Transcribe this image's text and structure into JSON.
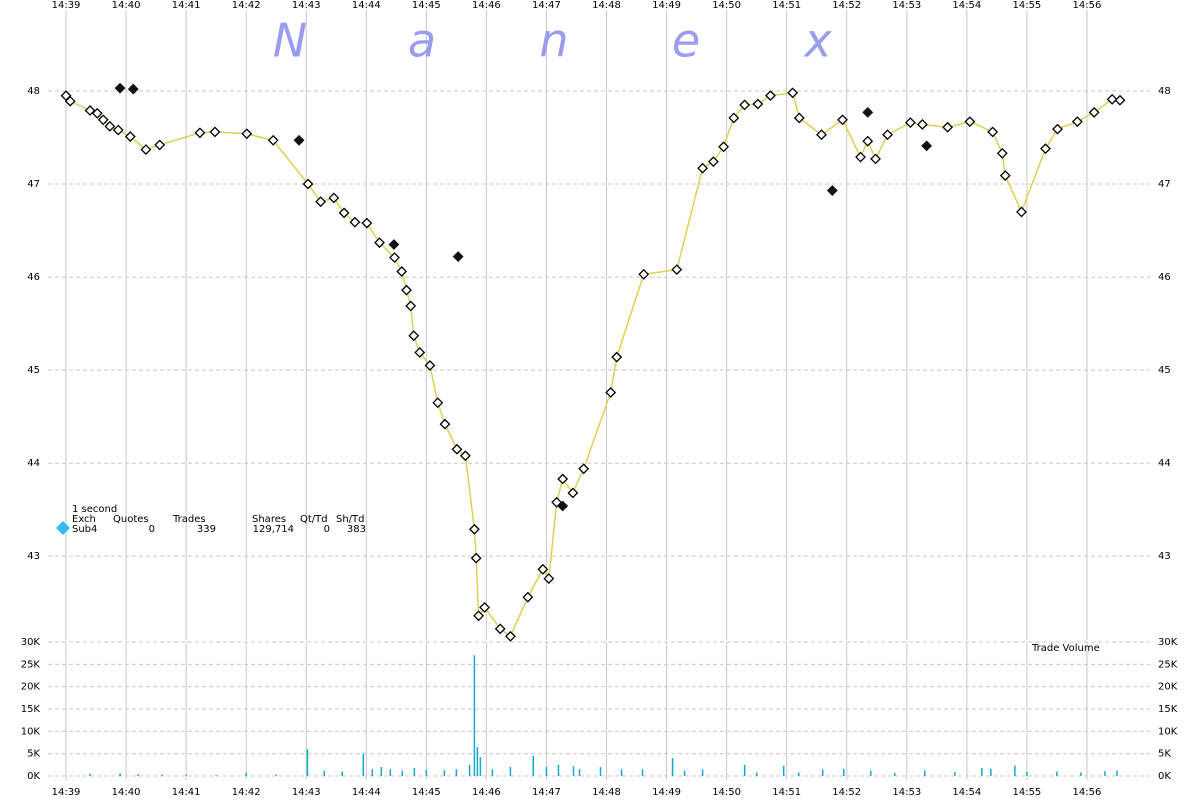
{
  "chart_data": [
    {
      "type": "scatter",
      "watermark": [
        "N",
        "a",
        "n",
        "e",
        "x"
      ],
      "info_table": {
        "interval": "1 second",
        "headers": [
          "Exch",
          "Quotes",
          "Trades",
          "Shares",
          "Qt/Td",
          "Sh/Td"
        ],
        "row": [
          "Sub4",
          "0",
          "339",
          "129,714",
          "0",
          "383"
        ],
        "marker_color": "#33bbee"
      },
      "xlim": [
        38.7,
        57.05
      ],
      "xticks": [
        {
          "value": 39,
          "label": "14:39"
        },
        {
          "value": 40,
          "label": "14:40"
        },
        {
          "value": 41,
          "label": "14:41"
        },
        {
          "value": 42,
          "label": "14:42"
        },
        {
          "value": 43,
          "label": "14:43"
        },
        {
          "value": 44,
          "label": "14:44"
        },
        {
          "value": 45,
          "label": "14:45"
        },
        {
          "value": 46,
          "label": "14:46"
        },
        {
          "value": 47,
          "label": "14:47"
        },
        {
          "value": 48,
          "label": "14:48"
        },
        {
          "value": 49,
          "label": "14:49"
        },
        {
          "value": 50,
          "label": "14:50"
        },
        {
          "value": 51,
          "label": "14:51"
        },
        {
          "value": 52,
          "label": "14:52"
        },
        {
          "value": 53,
          "label": "14:53"
        },
        {
          "value": 54,
          "label": "14:54"
        },
        {
          "value": 55,
          "label": "14:55"
        },
        {
          "value": 56,
          "label": "14:56"
        }
      ],
      "ylim": [
        42.1,
        48.87
      ],
      "yticks": [
        43,
        44,
        45,
        46,
        47,
        48
      ],
      "grid": true,
      "series": [
        {
          "color": "#000000",
          "marker": "diamond-open",
          "line_color": "#e0d050",
          "x": [
            39.0,
            39.07,
            39.4,
            39.52,
            39.62,
            39.73,
            39.87,
            40.07,
            40.33,
            40.56,
            41.23,
            41.48,
            42.01,
            42.45,
            43.03,
            43.24,
            43.46,
            43.63,
            43.81,
            44.01,
            44.22,
            44.47,
            44.59,
            44.67,
            44.74,
            44.79,
            44.89,
            45.06,
            45.19,
            45.31,
            45.51,
            45.65,
            45.8,
            45.83,
            45.87,
            45.97,
            46.23,
            46.4,
            46.69,
            46.94,
            47.04,
            47.17,
            47.27,
            47.44,
            47.62,
            48.07,
            48.17,
            48.62,
            49.17,
            49.6,
            49.78,
            49.95,
            50.12,
            50.3,
            50.52,
            50.73,
            51.1,
            51.21,
            51.58,
            51.93,
            52.23,
            52.35,
            52.48,
            52.68,
            53.06,
            53.26,
            53.68,
            54.05,
            54.43,
            54.59,
            54.64,
            54.91,
            55.31,
            55.51,
            55.84,
            56.12,
            56.42,
            56.55
          ],
          "values": [
            47.95,
            47.89,
            47.79,
            47.76,
            47.69,
            47.62,
            47.58,
            47.51,
            47.37,
            47.42,
            47.55,
            47.56,
            47.54,
            47.47,
            47.0,
            46.81,
            46.85,
            46.69,
            46.59,
            46.58,
            46.37,
            46.21,
            46.06,
            45.86,
            45.69,
            45.37,
            45.19,
            45.05,
            44.65,
            44.42,
            44.15,
            44.08,
            43.29,
            42.98,
            42.36,
            42.45,
            42.22,
            42.14,
            42.56,
            42.86,
            42.76,
            43.58,
            43.83,
            43.68,
            43.94,
            44.76,
            45.14,
            46.03,
            46.08,
            47.17,
            47.24,
            47.4,
            47.71,
            47.85,
            47.86,
            47.95,
            47.98,
            47.71,
            47.53,
            47.69,
            47.29,
            47.46,
            47.27,
            47.53,
            47.66,
            47.64,
            47.61,
            47.67,
            47.56,
            47.33,
            47.09,
            46.7,
            47.38,
            47.59,
            47.67,
            47.77,
            47.91,
            47.9
          ]
        },
        {
          "color": "#111111",
          "marker": "diamond-filled",
          "x": [
            39.9,
            40.12,
            42.88,
            44.46,
            45.53,
            47.27,
            51.76,
            52.35,
            53.33
          ],
          "values": [
            48.03,
            48.02,
            47.47,
            46.35,
            46.22,
            43.54,
            46.93,
            47.77,
            47.41
          ]
        }
      ]
    },
    {
      "type": "bar",
      "title": "Trade Volume",
      "color": "#11aacc",
      "xlim": [
        38.7,
        57.05
      ],
      "xticks": [
        {
          "value": 39,
          "label": "14:39"
        },
        {
          "value": 40,
          "label": "14:40"
        },
        {
          "value": 41,
          "label": "14:41"
        },
        {
          "value": 42,
          "label": "14:42"
        },
        {
          "value": 43,
          "label": "14:43"
        },
        {
          "value": 44,
          "label": "14:44"
        },
        {
          "value": 45,
          "label": "14:45"
        },
        {
          "value": 46,
          "label": "14:46"
        },
        {
          "value": 47,
          "label": "14:47"
        },
        {
          "value": 48,
          "label": "14:48"
        },
        {
          "value": 49,
          "label": "14:49"
        },
        {
          "value": 50,
          "label": "14:50"
        },
        {
          "value": 51,
          "label": "14:51"
        },
        {
          "value": 52,
          "label": "14:52"
        },
        {
          "value": 53,
          "label": "14:53"
        },
        {
          "value": 54,
          "label": "14:54"
        },
        {
          "value": 55,
          "label": "14:55"
        },
        {
          "value": 56,
          "label": "14:56"
        }
      ],
      "ylim": [
        0,
        30000
      ],
      "yticks": [
        {
          "value": 0,
          "label": "0K"
        },
        {
          "value": 5000,
          "label": "5K"
        },
        {
          "value": 10000,
          "label": "10K"
        },
        {
          "value": 15000,
          "label": "15K"
        },
        {
          "value": 20000,
          "label": "20K"
        },
        {
          "value": 25000,
          "label": "25K"
        },
        {
          "value": 30000,
          "label": "30K"
        }
      ],
      "grid": true,
      "x": [
        39.4,
        39.9,
        40.2,
        40.6,
        41.0,
        41.5,
        42.0,
        42.5,
        43.02,
        43.3,
        43.6,
        43.95,
        44.1,
        44.25,
        44.4,
        44.6,
        44.8,
        45.0,
        45.3,
        45.5,
        45.72,
        45.8,
        45.85,
        45.9,
        46.1,
        46.4,
        46.78,
        47.0,
        47.2,
        47.45,
        47.55,
        47.9,
        48.25,
        48.6,
        49.1,
        49.3,
        49.6,
        50.3,
        50.5,
        50.95,
        51.2,
        51.6,
        51.95,
        52.4,
        52.8,
        53.3,
        53.8,
        54.25,
        54.4,
        54.8,
        55.0,
        55.5,
        55.9,
        56.3,
        56.5
      ],
      "values": [
        500,
        600,
        400,
        300,
        300,
        200,
        700,
        300,
        6000,
        1200,
        1000,
        5000,
        1500,
        2000,
        1500,
        1200,
        1800,
        1400,
        1300,
        1500,
        2500,
        27000,
        6500,
        4200,
        1500,
        2000,
        4500,
        2000,
        2500,
        2200,
        1500,
        2000,
        1500,
        1500,
        4000,
        1200,
        1500,
        2500,
        800,
        2300,
        800,
        1500,
        1600,
        1200,
        700,
        1300,
        900,
        1800,
        1600,
        2300,
        900,
        1000,
        800,
        1100,
        1200
      ]
    }
  ]
}
